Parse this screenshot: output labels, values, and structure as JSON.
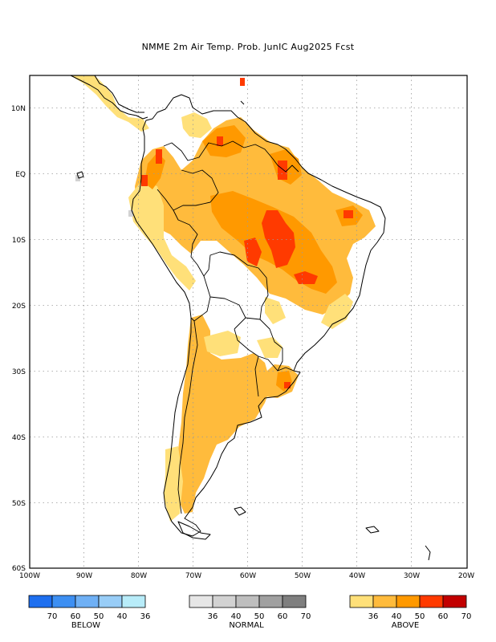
{
  "title": "NMME 2m Air Temp. Prob. JunIC  Aug2025 Fcst",
  "axes": {
    "x_ticks": [
      "100W",
      "90W",
      "80W",
      "70W",
      "60W",
      "50W",
      "40W",
      "30W",
      "20W"
    ],
    "y_ticks": [
      "10N",
      "EQ",
      "10S",
      "20S",
      "30S",
      "40S",
      "50S",
      "60S"
    ]
  },
  "legend": {
    "below": {
      "label": "BELOW",
      "ticks": [
        "70",
        "60",
        "50",
        "40",
        "36"
      ],
      "colors": [
        "#1e6fef",
        "#3d8ff2",
        "#6fb0f5",
        "#98cdf7",
        "#b8ecf9"
      ]
    },
    "normal": {
      "label": "NORMAL",
      "ticks": [
        "36",
        "40",
        "50",
        "60",
        "70"
      ],
      "colors": [
        "#e6e6e6",
        "#d2d2d2",
        "#bebebe",
        "#a0a0a0",
        "#7f7f7f"
      ]
    },
    "above": {
      "label": "ABOVE",
      "ticks": [
        "36",
        "40",
        "50",
        "60",
        "70"
      ],
      "colors": [
        "#ffe079",
        "#ffbb3c",
        "#ff9900",
        "#ff3a00",
        "#c20000"
      ]
    }
  }
}
